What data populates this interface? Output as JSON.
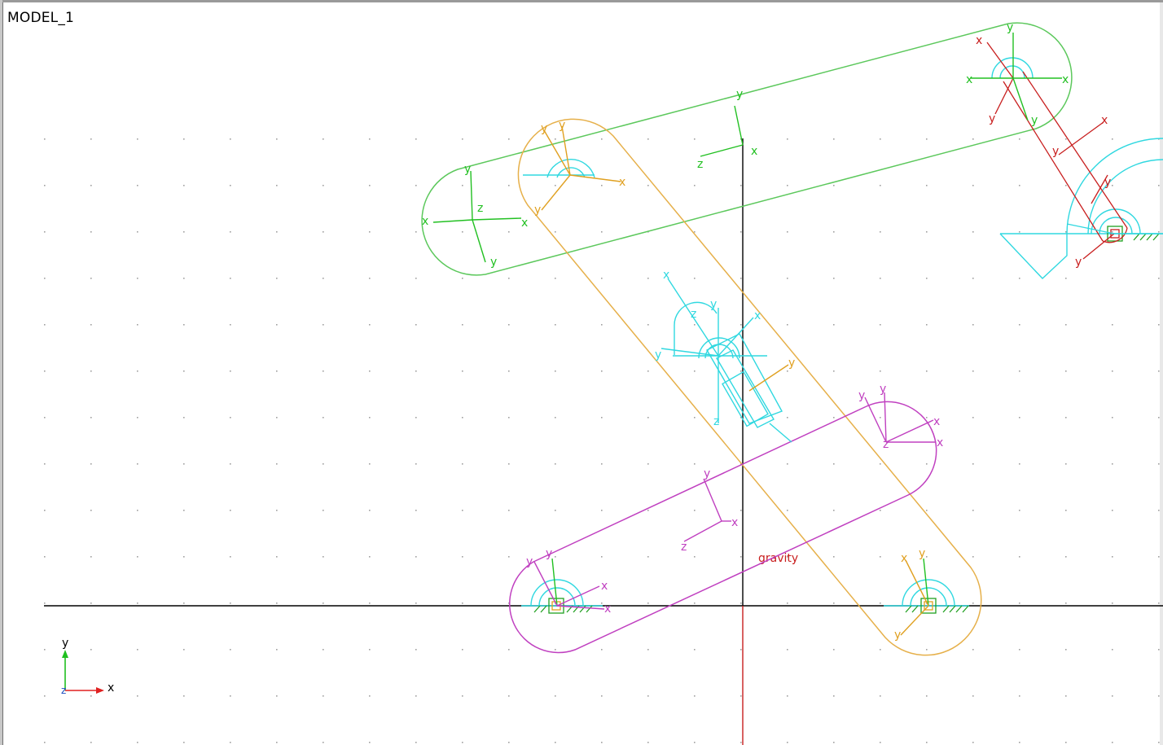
{
  "window": {
    "model_name": "MODEL_1"
  },
  "scene": {
    "gravity_label": "gravity",
    "axis_letters": {
      "x": "x",
      "y": "y",
      "z": "z"
    }
  },
  "colors": {
    "background": "#ffffff",
    "grid_dot": "#a0a0a0",
    "link_green": "#5cc85c",
    "link_orange": "#e6b04a",
    "link_magenta": "#c040c0",
    "marker_green": "#22c022",
    "marker_cyan": "#30d8e0",
    "marker_red": "#c81e1e",
    "marker_orange": "#e0a020",
    "ground_green": "#20a020",
    "origin_black": "#000000",
    "gravity_red": "#c81e1e",
    "view_x_axis": "#e02020",
    "view_y_axis": "#20c020"
  },
  "icons": {
    "view_triad": "xyz-triad-icon",
    "ground": "ground-hatch-icon",
    "joint": "revolute-joint-icon",
    "marker": "coordinate-marker-icon"
  }
}
